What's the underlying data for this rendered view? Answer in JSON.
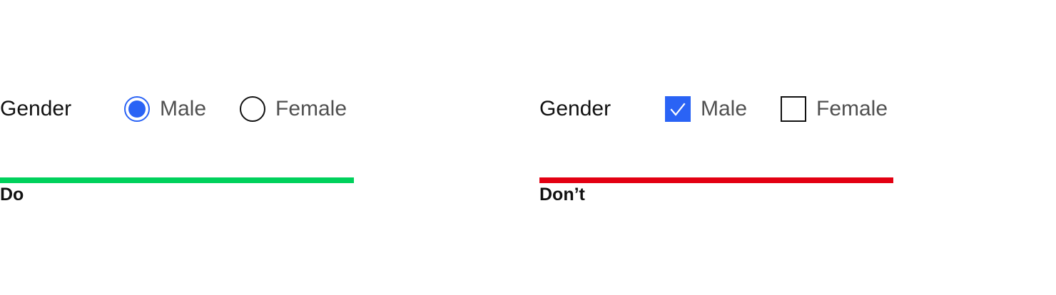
{
  "do_example": {
    "field_label": "Gender",
    "options": [
      {
        "label": "Male",
        "control": "radio",
        "checked": true
      },
      {
        "label": "Female",
        "control": "radio",
        "checked": false
      }
    ],
    "caption": "Do",
    "bar_color": "#00d15c"
  },
  "dont_example": {
    "field_label": "Gender",
    "options": [
      {
        "label": "Male",
        "control": "checkbox",
        "checked": true
      },
      {
        "label": "Female",
        "control": "checkbox",
        "checked": false
      }
    ],
    "caption": "Don’t",
    "bar_color": "#e30012"
  },
  "colors": {
    "accent": "#2a63f5",
    "label_text": "#111111",
    "option_text": "#505050"
  },
  "icons": {
    "selected_radio": "radio-checked-icon",
    "unselected_radio": "radio-unchecked-icon",
    "checked_box": "checkbox-checked-icon",
    "unchecked_box": "checkbox-unchecked-icon"
  }
}
